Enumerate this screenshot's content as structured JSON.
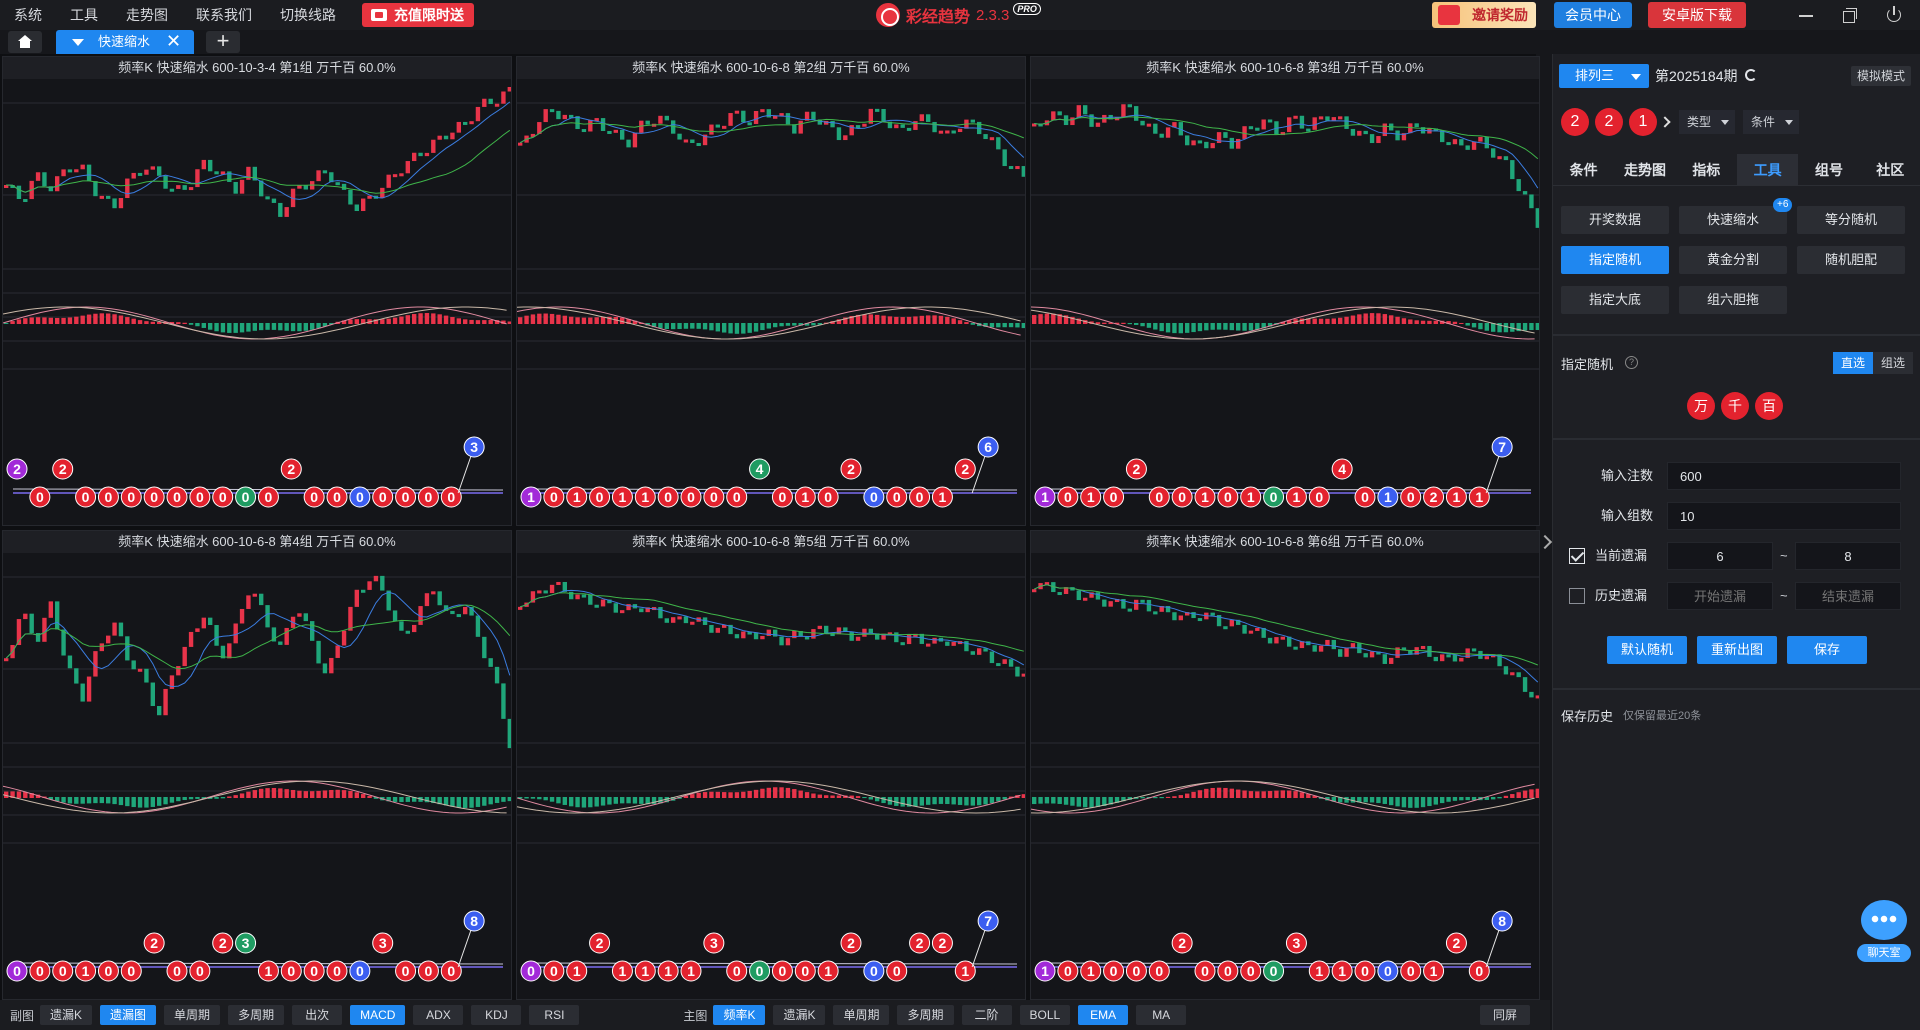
{
  "menu": [
    "系统",
    "工具",
    "走势图",
    "联系我们",
    "切换线路"
  ],
  "promo_label": "充值限时送",
  "app": {
    "name": "彩经趋势",
    "version": "2.3.3",
    "badge": "PRO"
  },
  "header_buttons": {
    "invite": "邀请奖励",
    "member": "会员中心",
    "android": "安卓版下载"
  },
  "tab": {
    "label": "快速缩水",
    "close": "✕",
    "add": "+"
  },
  "panels": [
    {
      "title": "频率K  快速缩水  600-10-3-4 第1组  万千百  60.0%",
      "trend": [
        0.5,
        0.42,
        0.55,
        0.48,
        0.6,
        0.58,
        0.45,
        0.38,
        0.52,
        0.6,
        0.55,
        0.46,
        0.5,
        0.62,
        0.56,
        0.48,
        0.58,
        0.42,
        0.35,
        0.48,
        0.52,
        0.58,
        0.46,
        0.38,
        0.44,
        0.52,
        0.6,
        0.66,
        0.72,
        0.78,
        0.82,
        0.92,
        0.95,
        1.0
      ],
      "bubbles": [
        {
          "i": 0,
          "v": "2",
          "c": "purple",
          "up": 1
        },
        {
          "i": 1,
          "v": "0",
          "c": "red"
        },
        {
          "i": 2,
          "v": "2",
          "c": "red",
          "up": 1
        },
        {
          "i": 3,
          "v": "0",
          "c": "red"
        },
        {
          "i": 4,
          "v": "0",
          "c": "red"
        },
        {
          "i": 5,
          "v": "0",
          "c": "red"
        },
        {
          "i": 6,
          "v": "0",
          "c": "red"
        },
        {
          "i": 7,
          "v": "0",
          "c": "red"
        },
        {
          "i": 8,
          "v": "0",
          "c": "red"
        },
        {
          "i": 9,
          "v": "0",
          "c": "red"
        },
        {
          "i": 10,
          "v": "0",
          "c": "green"
        },
        {
          "i": 11,
          "v": "0",
          "c": "red"
        },
        {
          "i": 12,
          "v": "2",
          "c": "red",
          "up": 1
        },
        {
          "i": 13,
          "v": "0",
          "c": "red"
        },
        {
          "i": 14,
          "v": "0",
          "c": "red"
        },
        {
          "i": 15,
          "v": "0",
          "c": "blue"
        },
        {
          "i": 16,
          "v": "0",
          "c": "red"
        },
        {
          "i": 17,
          "v": "0",
          "c": "red"
        },
        {
          "i": 18,
          "v": "0",
          "c": "red"
        },
        {
          "i": 19,
          "v": "0",
          "c": "red"
        },
        {
          "i": 20,
          "v": "3",
          "c": "blue",
          "up": 2
        }
      ]
    },
    {
      "title": "频率K  快速缩水  600-10-6-8 第2组  万千百  60.0%",
      "trend": [
        0.7,
        0.82,
        0.9,
        0.86,
        0.8,
        0.84,
        0.78,
        0.72,
        0.82,
        0.86,
        0.8,
        0.7,
        0.76,
        0.82,
        0.88,
        0.84,
        0.9,
        0.86,
        0.8,
        0.88,
        0.82,
        0.76,
        0.8,
        0.9,
        0.84,
        0.78,
        0.86,
        0.82,
        0.76,
        0.84,
        0.8,
        0.72,
        0.6,
        0.55
      ],
      "bubbles": [
        {
          "i": 0,
          "v": "1",
          "c": "purple"
        },
        {
          "i": 1,
          "v": "0",
          "c": "red"
        },
        {
          "i": 2,
          "v": "1",
          "c": "red"
        },
        {
          "i": 3,
          "v": "0",
          "c": "red"
        },
        {
          "i": 4,
          "v": "1",
          "c": "red"
        },
        {
          "i": 5,
          "v": "1",
          "c": "red"
        },
        {
          "i": 6,
          "v": "0",
          "c": "red"
        },
        {
          "i": 7,
          "v": "0",
          "c": "red"
        },
        {
          "i": 8,
          "v": "0",
          "c": "red"
        },
        {
          "i": 9,
          "v": "0",
          "c": "red"
        },
        {
          "i": 10,
          "v": "4",
          "c": "green",
          "up": 1
        },
        {
          "i": 11,
          "v": "0",
          "c": "red"
        },
        {
          "i": 12,
          "v": "1",
          "c": "red"
        },
        {
          "i": 13,
          "v": "0",
          "c": "red"
        },
        {
          "i": 14,
          "v": "2",
          "c": "red",
          "up": 1
        },
        {
          "i": 15,
          "v": "0",
          "c": "blue"
        },
        {
          "i": 16,
          "v": "0",
          "c": "red"
        },
        {
          "i": 17,
          "v": "0",
          "c": "red"
        },
        {
          "i": 18,
          "v": "1",
          "c": "red"
        },
        {
          "i": 19,
          "v": "2",
          "c": "red",
          "up": 1
        },
        {
          "i": 20,
          "v": "6",
          "c": "blue",
          "up": 2
        }
      ]
    },
    {
      "title": "频率K  快速缩水  600-10-6-8 第3组  万千百  60.0%",
      "trend": [
        0.8,
        0.88,
        0.84,
        0.9,
        0.82,
        0.86,
        0.92,
        0.84,
        0.76,
        0.82,
        0.74,
        0.7,
        0.76,
        0.72,
        0.8,
        0.84,
        0.78,
        0.86,
        0.8,
        0.88,
        0.84,
        0.78,
        0.74,
        0.8,
        0.76,
        0.82,
        0.78,
        0.74,
        0.7,
        0.74,
        0.68,
        0.6,
        0.45,
        0.3
      ],
      "bubbles": [
        {
          "i": 0,
          "v": "1",
          "c": "purple"
        },
        {
          "i": 1,
          "v": "0",
          "c": "red"
        },
        {
          "i": 2,
          "v": "1",
          "c": "red"
        },
        {
          "i": 3,
          "v": "0",
          "c": "red"
        },
        {
          "i": 4,
          "v": "2",
          "c": "red",
          "up": 1
        },
        {
          "i": 5,
          "v": "0",
          "c": "red"
        },
        {
          "i": 6,
          "v": "0",
          "c": "red"
        },
        {
          "i": 7,
          "v": "1",
          "c": "red"
        },
        {
          "i": 8,
          "v": "0",
          "c": "red"
        },
        {
          "i": 9,
          "v": "1",
          "c": "red"
        },
        {
          "i": 10,
          "v": "0",
          "c": "green"
        },
        {
          "i": 11,
          "v": "1",
          "c": "red"
        },
        {
          "i": 12,
          "v": "0",
          "c": "red"
        },
        {
          "i": 13,
          "v": "4",
          "c": "red",
          "up": 1
        },
        {
          "i": 14,
          "v": "0",
          "c": "red"
        },
        {
          "i": 15,
          "v": "1",
          "c": "blue"
        },
        {
          "i": 16,
          "v": "0",
          "c": "red"
        },
        {
          "i": 17,
          "v": "2",
          "c": "red"
        },
        {
          "i": 18,
          "v": "1",
          "c": "red"
        },
        {
          "i": 19,
          "v": "1",
          "c": "red"
        },
        {
          "i": 20,
          "v": "7",
          "c": "blue",
          "up": 2
        }
      ]
    },
    {
      "title": "频率K  快速缩水  600-10-6-8 第4组  万千百  60.0%",
      "trend": [
        0.5,
        0.75,
        0.6,
        0.8,
        0.45,
        0.3,
        0.55,
        0.7,
        0.5,
        0.4,
        0.2,
        0.45,
        0.6,
        0.75,
        0.5,
        0.65,
        0.9,
        0.7,
        0.55,
        0.8,
        0.6,
        0.4,
        0.65,
        0.85,
        0.95,
        0.8,
        0.6,
        0.75,
        0.88,
        0.7,
        0.8,
        0.6,
        0.4,
        0.05
      ],
      "bubbles": [
        {
          "i": 0,
          "v": "0",
          "c": "purple"
        },
        {
          "i": 1,
          "v": "0",
          "c": "red"
        },
        {
          "i": 2,
          "v": "0",
          "c": "red"
        },
        {
          "i": 3,
          "v": "1",
          "c": "red"
        },
        {
          "i": 4,
          "v": "0",
          "c": "red"
        },
        {
          "i": 5,
          "v": "0",
          "c": "red"
        },
        {
          "i": 6,
          "v": "2",
          "c": "red",
          "up": 1
        },
        {
          "i": 7,
          "v": "0",
          "c": "red"
        },
        {
          "i": 8,
          "v": "0",
          "c": "red"
        },
        {
          "i": 9,
          "v": "2",
          "c": "red",
          "up": 1
        },
        {
          "i": 10,
          "v": "3",
          "c": "green",
          "up": 1
        },
        {
          "i": 11,
          "v": "1",
          "c": "red"
        },
        {
          "i": 12,
          "v": "0",
          "c": "red"
        },
        {
          "i": 13,
          "v": "0",
          "c": "red"
        },
        {
          "i": 14,
          "v": "0",
          "c": "red"
        },
        {
          "i": 15,
          "v": "0",
          "c": "blue"
        },
        {
          "i": 16,
          "v": "3",
          "c": "red",
          "up": 1
        },
        {
          "i": 17,
          "v": "0",
          "c": "red"
        },
        {
          "i": 18,
          "v": "0",
          "c": "red"
        },
        {
          "i": 19,
          "v": "0",
          "c": "red"
        },
        {
          "i": 20,
          "v": "8",
          "c": "blue",
          "up": 2
        }
      ]
    },
    {
      "title": "频率K  快速缩水  600-10-6-8 第5组  万千百  60.0%",
      "trend": [
        0.8,
        0.84,
        0.9,
        0.86,
        0.82,
        0.8,
        0.78,
        0.76,
        0.78,
        0.74,
        0.7,
        0.72,
        0.68,
        0.66,
        0.64,
        0.62,
        0.64,
        0.6,
        0.62,
        0.64,
        0.66,
        0.64,
        0.62,
        0.64,
        0.62,
        0.6,
        0.62,
        0.58,
        0.6,
        0.56,
        0.54,
        0.5,
        0.46,
        0.42
      ],
      "bubbles": [
        {
          "i": 0,
          "v": "0",
          "c": "purple"
        },
        {
          "i": 1,
          "v": "0",
          "c": "red"
        },
        {
          "i": 2,
          "v": "1",
          "c": "red"
        },
        {
          "i": 3,
          "v": "2",
          "c": "red",
          "up": 1
        },
        {
          "i": 4,
          "v": "1",
          "c": "red"
        },
        {
          "i": 5,
          "v": "1",
          "c": "red"
        },
        {
          "i": 6,
          "v": "1",
          "c": "red"
        },
        {
          "i": 7,
          "v": "1",
          "c": "red"
        },
        {
          "i": 8,
          "v": "3",
          "c": "red",
          "up": 1
        },
        {
          "i": 9,
          "v": "0",
          "c": "red"
        },
        {
          "i": 10,
          "v": "0",
          "c": "green"
        },
        {
          "i": 11,
          "v": "0",
          "c": "red"
        },
        {
          "i": 12,
          "v": "0",
          "c": "red"
        },
        {
          "i": 13,
          "v": "1",
          "c": "red"
        },
        {
          "i": 14,
          "v": "2",
          "c": "red",
          "up": 1
        },
        {
          "i": 15,
          "v": "0",
          "c": "blue"
        },
        {
          "i": 16,
          "v": "0",
          "c": "red"
        },
        {
          "i": 17,
          "v": "2",
          "c": "red",
          "up": 1
        },
        {
          "i": 18,
          "v": "2",
          "c": "red",
          "up": 1
        },
        {
          "i": 19,
          "v": "1",
          "c": "red"
        },
        {
          "i": 20,
          "v": "7",
          "c": "blue",
          "up": 2
        }
      ]
    },
    {
      "title": "频率K  快速缩水  600-10-6-8 第6组  万千百  60.0%",
      "trend": [
        0.9,
        0.88,
        0.86,
        0.84,
        0.82,
        0.8,
        0.78,
        0.8,
        0.76,
        0.74,
        0.72,
        0.74,
        0.7,
        0.68,
        0.66,
        0.62,
        0.6,
        0.58,
        0.56,
        0.58,
        0.54,
        0.56,
        0.52,
        0.5,
        0.54,
        0.56,
        0.52,
        0.5,
        0.52,
        0.54,
        0.5,
        0.44,
        0.36,
        0.28
      ],
      "bubbles": [
        {
          "i": 0,
          "v": "1",
          "c": "purple"
        },
        {
          "i": 1,
          "v": "0",
          "c": "red"
        },
        {
          "i": 2,
          "v": "1",
          "c": "red"
        },
        {
          "i": 3,
          "v": "0",
          "c": "red"
        },
        {
          "i": 4,
          "v": "0",
          "c": "red"
        },
        {
          "i": 5,
          "v": "0",
          "c": "red"
        },
        {
          "i": 6,
          "v": "2",
          "c": "red",
          "up": 1
        },
        {
          "i": 7,
          "v": "0",
          "c": "red"
        },
        {
          "i": 8,
          "v": "0",
          "c": "red"
        },
        {
          "i": 9,
          "v": "0",
          "c": "red"
        },
        {
          "i": 10,
          "v": "0",
          "c": "green"
        },
        {
          "i": 11,
          "v": "3",
          "c": "red",
          "up": 1
        },
        {
          "i": 12,
          "v": "1",
          "c": "red"
        },
        {
          "i": 13,
          "v": "1",
          "c": "red"
        },
        {
          "i": 14,
          "v": "0",
          "c": "red"
        },
        {
          "i": 15,
          "v": "0",
          "c": "blue"
        },
        {
          "i": 16,
          "v": "0",
          "c": "red"
        },
        {
          "i": 17,
          "v": "1",
          "c": "red"
        },
        {
          "i": 18,
          "v": "2",
          "c": "red",
          "up": 1
        },
        {
          "i": 19,
          "v": "0",
          "c": "red"
        },
        {
          "i": 20,
          "v": "8",
          "c": "blue",
          "up": 2
        }
      ]
    }
  ],
  "bottom": {
    "sub_label": "副图",
    "sub_buttons": [
      {
        "t": "遗漏K",
        "on": false
      },
      {
        "t": "遗漏图",
        "on": true
      },
      {
        "t": "单周期",
        "on": false
      },
      {
        "t": "多周期",
        "on": false
      },
      {
        "t": "出次",
        "on": false
      },
      {
        "t": "MACD",
        "on": true
      },
      {
        "t": "ADX",
        "on": false
      },
      {
        "t": "KDJ",
        "on": false
      },
      {
        "t": "RSI",
        "on": false
      }
    ],
    "main_label": "主图",
    "main_buttons": [
      {
        "t": "频率K",
        "on": true
      },
      {
        "t": "遗漏K",
        "on": false
      },
      {
        "t": "单周期",
        "on": false
      },
      {
        "t": "多周期",
        "on": false
      },
      {
        "t": "二阶",
        "on": false
      },
      {
        "t": "BOLL",
        "on": false
      },
      {
        "t": "EMA",
        "on": true
      },
      {
        "t": "MA",
        "on": false
      }
    ],
    "sync": "同屏"
  },
  "side": {
    "lottery": "排列三",
    "issue": "第2025184期",
    "sim_mode": "模拟模式",
    "result_balls": [
      "2",
      "2",
      "1"
    ],
    "type_select": "类型",
    "cond_select": "条件",
    "tabs": [
      {
        "t": "条件",
        "on": false
      },
      {
        "t": "走势图",
        "on": false
      },
      {
        "t": "指标",
        "on": false
      },
      {
        "t": "工具",
        "on": true
      },
      {
        "t": "组号",
        "on": false
      },
      {
        "t": "社区",
        "on": false
      }
    ],
    "tools": [
      {
        "t": "开奖数据",
        "on": false
      },
      {
        "t": "快速缩水",
        "on": false
      },
      {
        "t": "等分随机",
        "on": false
      },
      {
        "t": "指定随机",
        "on": true
      },
      {
        "t": "黄金分割",
        "on": false
      },
      {
        "t": "随机胆配",
        "on": false
      },
      {
        "t": "指定大底",
        "on": false
      },
      {
        "t": "组六胆拖",
        "on": false
      }
    ],
    "plus_badge": "+6",
    "section_title": "指定随机",
    "help": "?",
    "seg_direct": "直选",
    "seg_group": "组选",
    "positions": [
      "万",
      "千",
      "百"
    ],
    "form": {
      "bets_label": "输入注数",
      "bets_value": "600",
      "groups_label": "输入组数",
      "groups_value": "10",
      "current_label": "当前遗漏",
      "current_from": "6",
      "current_to": "8",
      "history_label": "历史遗漏",
      "history_from_ph": "开始遗漏",
      "history_to_ph": "结束遗漏",
      "tilde": "~"
    },
    "actions": {
      "default": "默认随机",
      "redraw": "重新出图",
      "save": "保存"
    },
    "history_title": "保存历史",
    "history_note": "仅保留最近20条",
    "chat": "聊天室"
  },
  "colors": {
    "accent": "#1f87f0",
    "up": "#e8344a",
    "down": "#1fa67a",
    "ma_blue": "#3b7de0",
    "ma_green": "#3fb54a"
  }
}
